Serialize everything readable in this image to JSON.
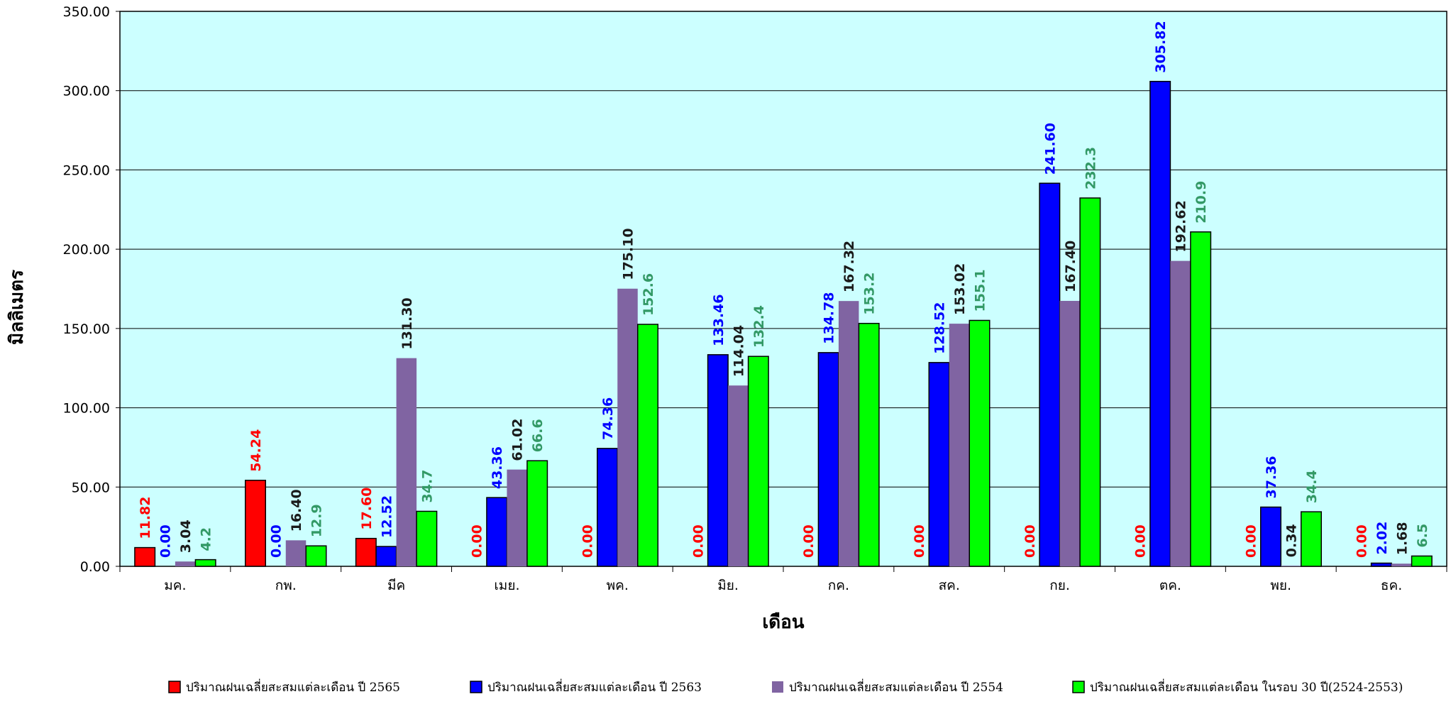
{
  "chart_data": {
    "type": "bar",
    "xlabel": "เดือน",
    "ylabel": "มิลลิเมตร",
    "ylim": [
      0,
      350
    ],
    "y_ticks": [
      "0.00",
      "50.00",
      "100.00",
      "150.00",
      "200.00",
      "250.00",
      "300.00",
      "350.00"
    ],
    "y_tick_values": [
      0,
      50,
      100,
      150,
      200,
      250,
      300,
      350
    ],
    "grid": true,
    "plot_background": "#ccffff",
    "legend_position": "bottom",
    "categories": [
      "มค.",
      "กพ.",
      "มีค",
      "เมย.",
      "พค.",
      "มิย.",
      "กค.",
      "สค.",
      "กย.",
      "ตค.",
      "พย.",
      "ธค."
    ],
    "series": [
      {
        "name": "ปริมาณฝนเฉลี่ยสะสมแต่ละเดือน ปี 2565",
        "color": "#ff0000",
        "label_color": "#ff0000",
        "values": [
          11.82,
          54.24,
          17.6,
          0.0,
          0.0,
          0.0,
          0.0,
          0.0,
          0.0,
          0.0,
          0.0,
          0.0
        ],
        "labels": [
          "11.82",
          "54.24",
          "17.60",
          "0.00",
          "0.00",
          "0.00",
          "0.00",
          "0.00",
          "0.00",
          "0.00",
          "0.00",
          "0.00"
        ]
      },
      {
        "name": "ปริมาณฝนเฉลี่ยสะสมแต่ละเดือน ปี 2563",
        "color": "#0000ff",
        "label_color": "#0000ff",
        "values": [
          0.0,
          0.0,
          12.52,
          43.36,
          74.36,
          133.46,
          134.78,
          128.52,
          241.6,
          305.82,
          37.36,
          2.02
        ],
        "labels": [
          "0.00",
          "0.00",
          "12.52",
          "43.36",
          "74.36",
          "133.46",
          "134.78",
          "128.52",
          "241.60",
          "305.82",
          "37.36",
          "2.02"
        ]
      },
      {
        "name": "ปริมาณฝนเฉลี่ยสะสมแต่ละเดือน ปี 2554",
        "color": "#8064a2",
        "label_color": "#1a1a1a",
        "values": [
          3.04,
          16.4,
          131.3,
          61.02,
          175.1,
          114.04,
          167.32,
          153.02,
          167.4,
          192.62,
          0.34,
          1.68
        ],
        "labels": [
          "3.04",
          "16.40",
          "131.30",
          "61.02",
          "175.10",
          "114.04",
          "167.32",
          "153.02",
          "167.40",
          "192.62",
          "0.34",
          "1.68"
        ]
      },
      {
        "name": "ปริมาณฝนเฉลี่ยสะสมแต่ละเดือน ในรอบ 30 ปี(2524-2553)",
        "color": "#00ff00",
        "label_color": "#339966",
        "values": [
          4.2,
          12.9,
          34.7,
          66.6,
          152.6,
          132.4,
          153.2,
          155.1,
          232.3,
          210.9,
          34.4,
          6.5
        ],
        "labels": [
          "4.2",
          "12.9",
          "34.7",
          "66.6",
          "152.6",
          "132.4",
          "153.2",
          "155.1",
          "232.3",
          "210.9",
          "34.4",
          "6.5"
        ]
      }
    ]
  }
}
